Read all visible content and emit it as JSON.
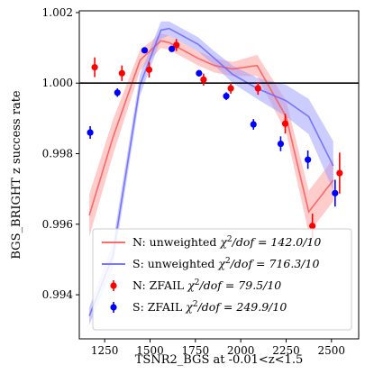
{
  "chart_data": {
    "type": "line",
    "xlabel": "TSNR2_BGS at -0.01<z<1.5",
    "ylabel": "BGS_BRIGHT z success rate",
    "xlim": [
      1110,
      2650
    ],
    "ylim": [
      0.99275,
      1.00205
    ],
    "x_ticks": [
      1250,
      1500,
      1750,
      2000,
      2250,
      2500
    ],
    "x_tick_labels": [
      "1250",
      "1500",
      "1750",
      "2000",
      "2250",
      "2500"
    ],
    "y_ticks": [
      0.994,
      0.996,
      0.998,
      1.0,
      1.002
    ],
    "y_tick_labels": [
      "0.994",
      "0.996",
      "0.998",
      "1.000",
      "1.002"
    ],
    "reference_line": 1.0,
    "legend_position": "lower-left",
    "colors": {
      "N": "#ff0000",
      "S": "#0000ff",
      "N_fill": "#ff9999",
      "S_fill": "#9999ff"
    },
    "series": [
      {
        "name": "N: unweighted χ²/dof = 142.0/10",
        "label_prefix": "N: unweighted ",
        "label_stat": "/dof = 142.0/10",
        "kind": "line_band",
        "color": "#ff5555",
        "fill": "#ff9999",
        "x": [
          1165,
          1295,
          1445,
          1560,
          1605,
          1765,
          1855,
          1955,
          2090,
          2250,
          2375,
          2510
        ],
        "y": [
          0.99625,
          0.99845,
          1.00065,
          1.0012,
          1.00115,
          1.0007,
          1.0005,
          1.0004,
          1.0005,
          0.99905,
          0.99635,
          0.99725
        ],
        "y_low": [
          0.99565,
          0.99795,
          1.00035,
          1.001,
          1.00095,
          1.0005,
          1.0003,
          1.0002,
          1.0002,
          0.9986,
          0.99575,
          0.99665
        ],
        "y_high": [
          0.99685,
          0.99895,
          1.00095,
          1.0014,
          1.00135,
          1.0009,
          1.0007,
          1.0006,
          1.0008,
          0.9995,
          0.99695,
          0.99785
        ]
      },
      {
        "name": "S: unweighted χ²/dof = 716.3/10",
        "label_prefix": "S: unweighted ",
        "label_stat": "/dof = 716.3/10",
        "kind": "line_band",
        "color": "#6666ff",
        "fill": "#9999ff",
        "x": [
          1165,
          1295,
          1445,
          1560,
          1605,
          1765,
          1855,
          1955,
          2090,
          2250,
          2375,
          2510
        ],
        "y": [
          0.9934,
          0.9951,
          0.99995,
          1.0015,
          1.00155,
          1.0011,
          1.0007,
          1.00025,
          0.99985,
          0.9995,
          0.99905,
          0.99765
        ],
        "y_low": [
          0.99315,
          0.99475,
          0.99965,
          1.00125,
          1.00135,
          1.0009,
          1.0005,
          1.0,
          0.99955,
          0.99905,
          0.99855,
          0.99695
        ],
        "y_high": [
          0.99365,
          0.99545,
          1.00025,
          1.00175,
          1.00175,
          1.0013,
          1.0009,
          1.0005,
          1.00015,
          0.99995,
          0.99955,
          0.99835
        ]
      },
      {
        "name": "N: ZFAIL χ²/dof = 79.5/10",
        "label_prefix": "N: ZFAIL ",
        "label_stat": "/dof = 79.5/10",
        "kind": "errorbar",
        "color": "#ff0000",
        "x": [
          1195,
          1345,
          1495,
          1645,
          1795,
          1945,
          2095,
          2245,
          2395,
          2545
        ],
        "y": [
          1.00045,
          1.00028,
          1.00038,
          1.00108,
          1.0001,
          0.99985,
          0.99985,
          0.99885,
          0.99595,
          0.99745
        ],
        "err": [
          0.00028,
          0.00022,
          0.00022,
          0.00017,
          0.00017,
          0.00015,
          0.00018,
          0.00028,
          0.00035,
          0.00058
        ]
      },
      {
        "name": "S: ZFAIL χ²/dof = 249.9/10",
        "label_prefix": "S: ZFAIL ",
        "label_stat": "/dof = 249.9/10",
        "kind": "errorbar",
        "color": "#0000ff",
        "x": [
          1170,
          1320,
          1470,
          1620,
          1770,
          1920,
          2070,
          2220,
          2370,
          2520
        ],
        "y": [
          0.9986,
          0.99973,
          1.00093,
          1.00097,
          1.00028,
          0.99963,
          0.99883,
          0.99828,
          0.99783,
          0.99688
        ],
        "err": [
          0.00018,
          0.00012,
          8e-05,
          8e-05,
          9e-05,
          0.00011,
          0.00015,
          0.00021,
          0.00026,
          0.00038
        ]
      }
    ]
  }
}
